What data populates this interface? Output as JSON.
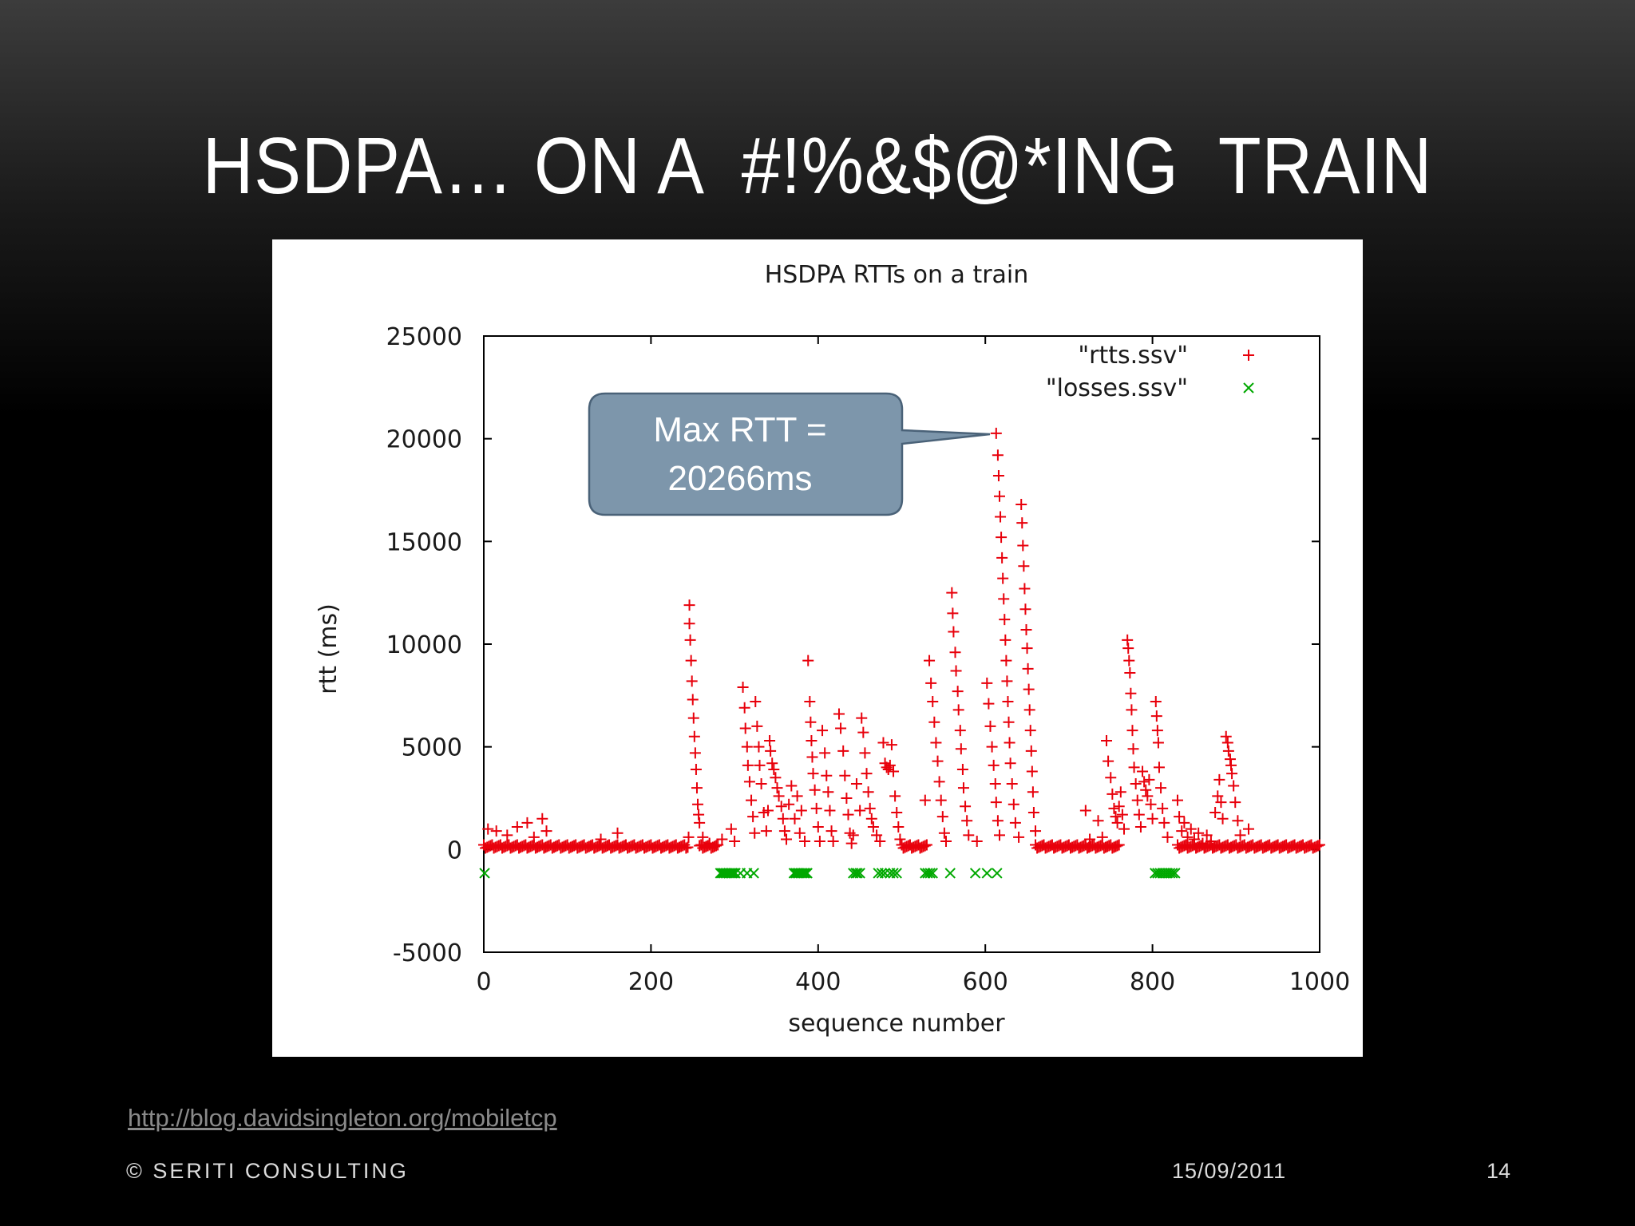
{
  "slide": {
    "title": "HSDPA… ON A  #!%&$@*ING  TRAIN",
    "source_link": "http://blog.davidsingleton.org/mobiletcp",
    "footer_company": "© SERITI CONSULTING",
    "footer_date": "15/09/2011",
    "page_number": "14"
  },
  "callout": {
    "line1": "Max RTT =",
    "line2": "20266ms",
    "points_to": {
      "x": 613,
      "y": 20266
    }
  },
  "colors": {
    "rtts": "#e8000b",
    "losses": "#00a800",
    "callout_fill": "#7d96ab",
    "callout_stroke": "#4a6278"
  },
  "chart_data": {
    "type": "scatter",
    "title": "HSDPA RTTs on a train",
    "xlabel": "sequence number",
    "ylabel": "rtt (ms)",
    "xlim": [
      0,
      1000
    ],
    "ylim": [
      -5000,
      25000
    ],
    "xticks": [
      0,
      200,
      400,
      600,
      800,
      1000
    ],
    "yticks": [
      -5000,
      0,
      5000,
      10000,
      15000,
      20000,
      25000
    ],
    "grid": false,
    "legend": "top-right",
    "series": [
      {
        "name": "\"rtts.ssv\"",
        "marker": "plus",
        "baseline": {
          "value": 150,
          "ranges": [
            [
              0,
              245
            ],
            [
              258,
              280
            ],
            [
              500,
              530
            ],
            [
              660,
              760
            ],
            [
              830,
              1000
            ]
          ]
        },
        "points": [
          [
            5,
            1000
          ],
          [
            15,
            900
          ],
          [
            28,
            700
          ],
          [
            40,
            1100
          ],
          [
            52,
            1300
          ],
          [
            60,
            600
          ],
          [
            70,
            1500
          ],
          [
            75,
            900
          ],
          [
            140,
            500
          ],
          [
            160,
            800
          ],
          [
            245,
            600
          ],
          [
            246,
            11900
          ],
          [
            246,
            11000
          ],
          [
            247,
            10200
          ],
          [
            248,
            9200
          ],
          [
            249,
            8200
          ],
          [
            250,
            7300
          ],
          [
            251,
            6400
          ],
          [
            252,
            5500
          ],
          [
            253,
            4700
          ],
          [
            254,
            3900
          ],
          [
            255,
            3000
          ],
          [
            256,
            2200
          ],
          [
            257,
            1700
          ],
          [
            258,
            1300
          ],
          [
            262,
            600
          ],
          [
            270,
            300
          ],
          [
            285,
            500
          ],
          [
            296,
            1000
          ],
          [
            300,
            400
          ],
          [
            310,
            7900
          ],
          [
            312,
            6900
          ],
          [
            313,
            5900
          ],
          [
            315,
            5000
          ],
          [
            316,
            4100
          ],
          [
            318,
            3300
          ],
          [
            320,
            2400
          ],
          [
            322,
            1600
          ],
          [
            324,
            800
          ],
          [
            325,
            7200
          ],
          [
            327,
            6000
          ],
          [
            329,
            5000
          ],
          [
            330,
            4100
          ],
          [
            332,
            3200
          ],
          [
            335,
            1800
          ],
          [
            338,
            900
          ],
          [
            340,
            1900
          ],
          [
            342,
            5300
          ],
          [
            343,
            4800
          ],
          [
            345,
            4200
          ],
          [
            347,
            3900
          ],
          [
            349,
            3500
          ],
          [
            351,
            3000
          ],
          [
            353,
            2600
          ],
          [
            356,
            2100
          ],
          [
            358,
            1500
          ],
          [
            360,
            900
          ],
          [
            362,
            500
          ],
          [
            365,
            2200
          ],
          [
            368,
            3100
          ],
          [
            372,
            1500
          ],
          [
            375,
            2600
          ],
          [
            378,
            800
          ],
          [
            380,
            1900
          ],
          [
            384,
            400
          ],
          [
            388,
            9200
          ],
          [
            390,
            7200
          ],
          [
            391,
            6200
          ],
          [
            392,
            5300
          ],
          [
            393,
            4500
          ],
          [
            394,
            3700
          ],
          [
            396,
            2900
          ],
          [
            398,
            2000
          ],
          [
            400,
            1100
          ],
          [
            402,
            400
          ],
          [
            405,
            5800
          ],
          [
            408,
            4700
          ],
          [
            410,
            3600
          ],
          [
            412,
            2800
          ],
          [
            414,
            1900
          ],
          [
            416,
            900
          ],
          [
            418,
            400
          ],
          [
            425,
            6600
          ],
          [
            427,
            5900
          ],
          [
            430,
            4800
          ],
          [
            432,
            3600
          ],
          [
            434,
            2500
          ],
          [
            436,
            1700
          ],
          [
            438,
            800
          ],
          [
            440,
            300
          ],
          [
            442,
            700
          ],
          [
            446,
            3200
          ],
          [
            450,
            1900
          ],
          [
            452,
            6400
          ],
          [
            454,
            5700
          ],
          [
            456,
            4700
          ],
          [
            458,
            3700
          ],
          [
            460,
            2800
          ],
          [
            462,
            2000
          ],
          [
            464,
            1500
          ],
          [
            466,
            1100
          ],
          [
            470,
            700
          ],
          [
            474,
            400
          ],
          [
            478,
            5200
          ],
          [
            480,
            4200
          ],
          [
            482,
            4000
          ],
          [
            484,
            3900
          ],
          [
            486,
            4100
          ],
          [
            488,
            5100
          ],
          [
            490,
            3800
          ],
          [
            492,
            2600
          ],
          [
            494,
            1800
          ],
          [
            496,
            1100
          ],
          [
            498,
            500
          ],
          [
            528,
            2400
          ],
          [
            533,
            9200
          ],
          [
            535,
            8100
          ],
          [
            537,
            7200
          ],
          [
            539,
            6200
          ],
          [
            541,
            5200
          ],
          [
            543,
            4300
          ],
          [
            545,
            3300
          ],
          [
            547,
            2400
          ],
          [
            549,
            1600
          ],
          [
            551,
            800
          ],
          [
            553,
            400
          ],
          [
            560,
            12500
          ],
          [
            561,
            11500
          ],
          [
            562,
            10600
          ],
          [
            564,
            9600
          ],
          [
            565,
            8700
          ],
          [
            567,
            7700
          ],
          [
            568,
            6800
          ],
          [
            570,
            5800
          ],
          [
            571,
            4900
          ],
          [
            573,
            3900
          ],
          [
            574,
            3000
          ],
          [
            576,
            2100
          ],
          [
            578,
            1400
          ],
          [
            580,
            700
          ],
          [
            590,
            400
          ],
          [
            602,
            8100
          ],
          [
            604,
            7100
          ],
          [
            606,
            6000
          ],
          [
            608,
            5000
          ],
          [
            610,
            4100
          ],
          [
            612,
            3200
          ],
          [
            613,
            2300
          ],
          [
            615,
            1400
          ],
          [
            617,
            700
          ],
          [
            613,
            20266
          ],
          [
            615,
            19200
          ],
          [
            616,
            18200
          ],
          [
            617,
            17200
          ],
          [
            618,
            16200
          ],
          [
            619,
            15200
          ],
          [
            620,
            14200
          ],
          [
            621,
            13200
          ],
          [
            622,
            12200
          ],
          [
            623,
            11200
          ],
          [
            624,
            10200
          ],
          [
            625,
            9200
          ],
          [
            626,
            8200
          ],
          [
            627,
            7200
          ],
          [
            628,
            6200
          ],
          [
            629,
            5200
          ],
          [
            630,
            4200
          ],
          [
            632,
            3200
          ],
          [
            634,
            2200
          ],
          [
            636,
            1300
          ],
          [
            640,
            600
          ],
          [
            643,
            16800
          ],
          [
            644,
            15900
          ],
          [
            645,
            14800
          ],
          [
            646,
            13800
          ],
          [
            647,
            12700
          ],
          [
            648,
            11700
          ],
          [
            649,
            10700
          ],
          [
            650,
            9800
          ],
          [
            651,
            8800
          ],
          [
            652,
            7800
          ],
          [
            653,
            6800
          ],
          [
            654,
            5800
          ],
          [
            655,
            4800
          ],
          [
            656,
            3800
          ],
          [
            657,
            2800
          ],
          [
            658,
            1800
          ],
          [
            660,
            900
          ],
          [
            720,
            1900
          ],
          [
            725,
            500
          ],
          [
            735,
            1400
          ],
          [
            740,
            600
          ],
          [
            745,
            5300
          ],
          [
            747,
            4300
          ],
          [
            750,
            3500
          ],
          [
            752,
            2700
          ],
          [
            754,
            2000
          ],
          [
            756,
            1600
          ],
          [
            758,
            1300
          ],
          [
            760,
            2100
          ],
          [
            762,
            2800
          ],
          [
            764,
            1700
          ],
          [
            766,
            1000
          ],
          [
            770,
            10200
          ],
          [
            771,
            9800
          ],
          [
            772,
            9200
          ],
          [
            773,
            8600
          ],
          [
            774,
            7600
          ],
          [
            775,
            6800
          ],
          [
            776,
            5800
          ],
          [
            777,
            4900
          ],
          [
            778,
            4000
          ],
          [
            780,
            3200
          ],
          [
            782,
            2400
          ],
          [
            784,
            1700
          ],
          [
            786,
            1100
          ],
          [
            788,
            3800
          ],
          [
            790,
            3300
          ],
          [
            792,
            2900
          ],
          [
            794,
            2600
          ],
          [
            796,
            3400
          ],
          [
            798,
            2200
          ],
          [
            800,
            1500
          ],
          [
            804,
            7200
          ],
          [
            805,
            6500
          ],
          [
            806,
            5800
          ],
          [
            807,
            5200
          ],
          [
            808,
            4000
          ],
          [
            810,
            3000
          ],
          [
            812,
            2000
          ],
          [
            814,
            1300
          ],
          [
            818,
            600
          ],
          [
            830,
            2400
          ],
          [
            832,
            1600
          ],
          [
            835,
            900
          ],
          [
            838,
            1300
          ],
          [
            842,
            600
          ],
          [
            846,
            1000
          ],
          [
            850,
            500
          ],
          [
            855,
            800
          ],
          [
            860,
            300
          ],
          [
            865,
            700
          ],
          [
            870,
            400
          ],
          [
            875,
            1800
          ],
          [
            878,
            2600
          ],
          [
            880,
            3400
          ],
          [
            882,
            2300
          ],
          [
            884,
            1500
          ],
          [
            888,
            5500
          ],
          [
            890,
            5200
          ],
          [
            891,
            4800
          ],
          [
            893,
            4400
          ],
          [
            894,
            4100
          ],
          [
            895,
            3700
          ],
          [
            897,
            3100
          ],
          [
            899,
            2300
          ],
          [
            902,
            1400
          ],
          [
            905,
            700
          ],
          [
            915,
            1000
          ]
        ]
      },
      {
        "name": "\"losses.ssv\"",
        "marker": "cross",
        "y": -1150,
        "x": [
          1,
          283,
          285,
          287,
          289,
          291,
          293,
          295,
          297,
          299,
          301,
          307,
          315,
          323,
          371,
          373,
          375,
          377,
          379,
          381,
          383,
          385,
          387,
          442,
          445,
          447,
          450,
          472,
          476,
          480,
          486,
          490,
          494,
          528,
          531,
          534,
          537,
          558,
          588,
          602,
          614,
          803,
          806,
          809,
          812,
          815,
          818,
          821,
          824,
          827
        ]
      }
    ]
  }
}
